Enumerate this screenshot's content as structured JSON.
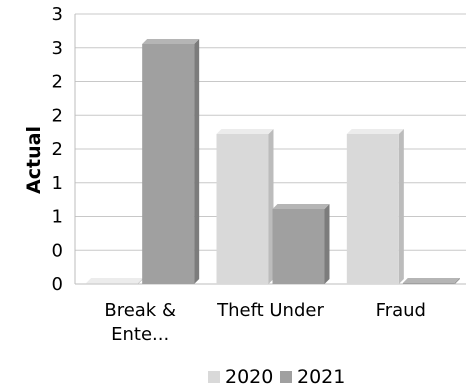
{
  "chart_data": {
    "type": "bar",
    "categories": [
      "Break & Ente...",
      "Theft Under",
      "Fraud"
    ],
    "category_lines": [
      [
        "Break &",
        "Ente..."
      ],
      [
        "Theft Under"
      ],
      [
        "Fraud"
      ]
    ],
    "series": [
      {
        "name": "2020",
        "values": [
          0,
          2,
          2
        ],
        "color": "#d9d9d9"
      },
      {
        "name": "2021",
        "values": [
          3.2,
          1,
          0
        ],
        "color": "#a0a0a0"
      }
    ],
    "ytick_labels": [
      "0",
      "0",
      "1",
      "1",
      "2",
      "2",
      "2",
      "3",
      "3"
    ],
    "ylim": [
      0,
      3.6
    ],
    "ylabel": "Actual",
    "xlabel": "",
    "grid": true,
    "legend_position": "bottom"
  }
}
